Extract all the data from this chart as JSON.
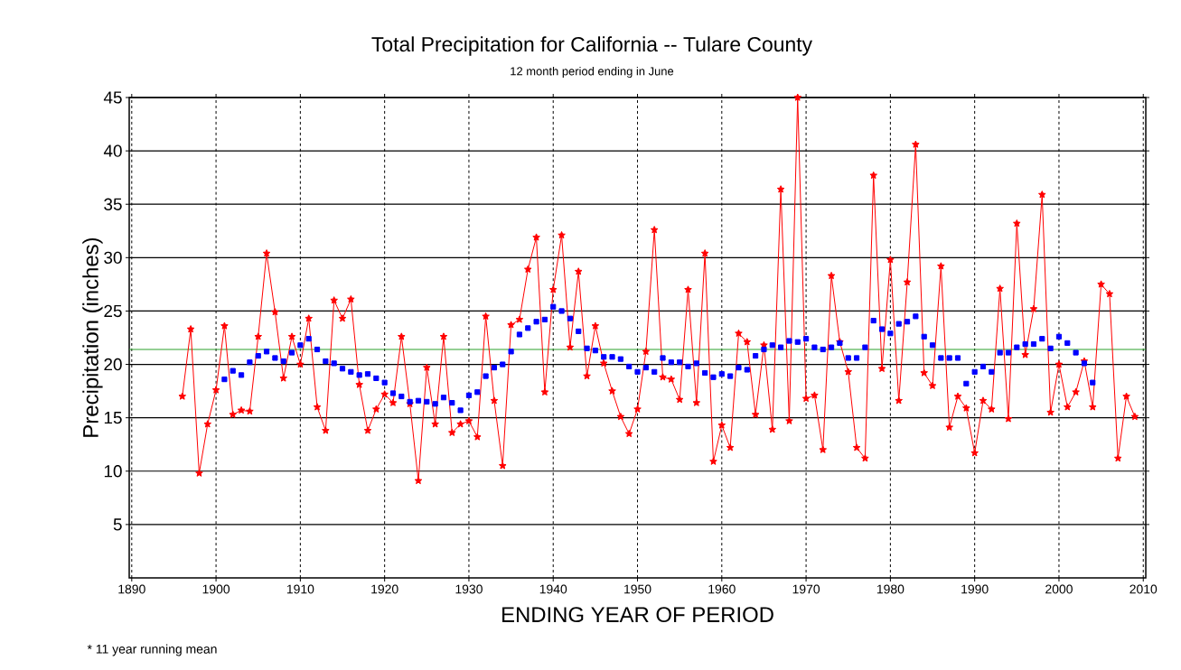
{
  "chart_data": {
    "type": "line",
    "title": "Total Precipitation for California -- Tulare County",
    "subtitle": "12 month period ending in June",
    "xlabel": "ENDING YEAR OF PERIOD",
    "ylabel": "Precipitation (inches)",
    "annotations": [
      "* 11 year running mean"
    ],
    "xlim": [
      1889.7,
      2010.3
    ],
    "ylim": [
      0,
      45
    ],
    "xticks": [
      1890,
      1900,
      1910,
      1920,
      1930,
      1940,
      1950,
      1960,
      1970,
      1980,
      1990,
      2000,
      2010
    ],
    "yticks": [
      5,
      10,
      15,
      20,
      25,
      30,
      35,
      40,
      45
    ],
    "grid": true,
    "series": [
      {
        "color": "#ff0000",
        "marker": "star",
        "line_style": "solid",
        "x": [
          1896,
          1897,
          1898,
          1899,
          1900,
          1901,
          1902,
          1903,
          1904,
          1905,
          1906,
          1907,
          1908,
          1909,
          1910,
          1911,
          1912,
          1913,
          1914,
          1915,
          1916,
          1917,
          1918,
          1919,
          1920,
          1921,
          1922,
          1923,
          1924,
          1925,
          1926,
          1927,
          1928,
          1929,
          1930,
          1931,
          1932,
          1933,
          1934,
          1935,
          1936,
          1937,
          1938,
          1939,
          1940,
          1941,
          1942,
          1943,
          1944,
          1945,
          1946,
          1947,
          1948,
          1949,
          1950,
          1951,
          1952,
          1953,
          1954,
          1955,
          1956,
          1957,
          1958,
          1959,
          1960,
          1961,
          1962,
          1963,
          1964,
          1965,
          1966,
          1967,
          1968,
          1969,
          1970,
          1971,
          1972,
          1973,
          1974,
          1975,
          1976,
          1977,
          1978,
          1979,
          1980,
          1981,
          1982,
          1983,
          1984,
          1985,
          1986,
          1987,
          1988,
          1989,
          1990,
          1991,
          1992,
          1993,
          1994,
          1995,
          1996,
          1997,
          1998,
          1999,
          2000,
          2001,
          2002,
          2003,
          2004,
          2005,
          2006,
          2007,
          2008,
          2009
        ],
        "values": [
          17.0,
          23.3,
          9.8,
          14.4,
          17.6,
          23.6,
          15.3,
          15.7,
          15.6,
          22.6,
          30.4,
          24.9,
          18.7,
          22.6,
          20.0,
          24.3,
          16.0,
          13.8,
          26.0,
          24.3,
          26.1,
          18.1,
          13.8,
          15.8,
          17.2,
          16.4,
          22.6,
          16.3,
          9.1,
          19.7,
          14.4,
          22.6,
          13.6,
          14.4,
          14.7,
          13.2,
          24.5,
          16.6,
          10.5,
          23.7,
          24.2,
          28.9,
          31.9,
          17.4,
          27.0,
          32.1,
          21.6,
          28.7,
          18.9,
          23.6,
          20.1,
          17.5,
          15.1,
          13.5,
          15.8,
          21.2,
          32.6,
          18.8,
          18.6,
          16.7,
          27.0,
          16.4,
          30.4,
          10.9,
          14.3,
          12.2,
          22.9,
          22.1,
          15.3,
          21.8,
          13.9,
          36.4,
          14.7,
          45.0,
          16.8,
          17.1,
          12.0,
          28.3,
          22.1,
          19.3,
          12.2,
          11.2,
          37.7,
          19.6,
          29.8,
          16.6,
          27.7,
          40.6,
          19.2,
          18.0,
          29.2,
          14.1,
          17.0,
          15.9,
          11.7,
          16.6,
          15.8,
          27.1,
          14.9,
          33.2,
          20.9,
          25.2,
          35.9,
          15.5,
          20.0,
          16.0,
          17.4,
          20.3,
          16.0,
          27.5,
          26.6,
          11.2,
          17.0,
          15.1
        ]
      },
      {
        "type": "scatter",
        "color": "#0000ff",
        "marker": "square",
        "x": [
          1901,
          1902,
          1903,
          1904,
          1905,
          1906,
          1907,
          1908,
          1909,
          1910,
          1911,
          1912,
          1913,
          1914,
          1915,
          1916,
          1917,
          1918,
          1919,
          1920,
          1921,
          1922,
          1923,
          1924,
          1925,
          1926,
          1927,
          1928,
          1929,
          1930,
          1931,
          1932,
          1933,
          1934,
          1935,
          1936,
          1937,
          1938,
          1939,
          1940,
          1941,
          1942,
          1943,
          1944,
          1945,
          1946,
          1947,
          1948,
          1949,
          1950,
          1951,
          1952,
          1953,
          1954,
          1955,
          1956,
          1957,
          1958,
          1959,
          1960,
          1961,
          1962,
          1963,
          1964,
          1965,
          1966,
          1967,
          1968,
          1969,
          1970,
          1971,
          1972,
          1973,
          1974,
          1975,
          1976,
          1977,
          1978,
          1979,
          1980,
          1981,
          1982,
          1983,
          1984,
          1985,
          1986,
          1987,
          1988,
          1989,
          1990,
          1991,
          1992,
          1993,
          1994,
          1995,
          1996,
          1997,
          1998,
          1999,
          2000,
          2001,
          2002,
          2003,
          2004
        ],
        "values": [
          18.6,
          19.4,
          19.0,
          20.2,
          20.8,
          21.2,
          20.6,
          20.3,
          21.1,
          21.8,
          22.4,
          21.4,
          20.3,
          20.1,
          19.6,
          19.3,
          19.0,
          19.1,
          18.7,
          18.3,
          17.3,
          17.0,
          16.5,
          16.6,
          16.5,
          16.3,
          16.9,
          16.4,
          15.7,
          17.1,
          17.4,
          18.9,
          19.7,
          20.0,
          21.2,
          22.8,
          23.4,
          24.0,
          24.2,
          25.4,
          25.0,
          24.3,
          23.1,
          21.5,
          21.3,
          20.7,
          20.7,
          20.5,
          19.8,
          19.3,
          19.7,
          19.3,
          20.6,
          20.2,
          20.2,
          19.8,
          20.1,
          19.2,
          18.8,
          19.1,
          18.9,
          19.7,
          19.5,
          20.8,
          21.4,
          21.8,
          21.6,
          22.2,
          22.1,
          22.4,
          21.6,
          21.4,
          21.6,
          22.0,
          20.6,
          20.6,
          21.6,
          24.1,
          23.3,
          22.9,
          23.8,
          24.0,
          24.5,
          22.6,
          21.8,
          20.6,
          20.6,
          20.6,
          18.2,
          19.3,
          19.8,
          19.3,
          21.1,
          21.1,
          21.6,
          21.9,
          21.9,
          22.4,
          21.5,
          22.6,
          22.0,
          21.1,
          20.1,
          18.3
        ]
      }
    ],
    "ref_lines": [
      {
        "axis": "y",
        "value": 21.4,
        "color": "#2ca02c"
      }
    ]
  }
}
